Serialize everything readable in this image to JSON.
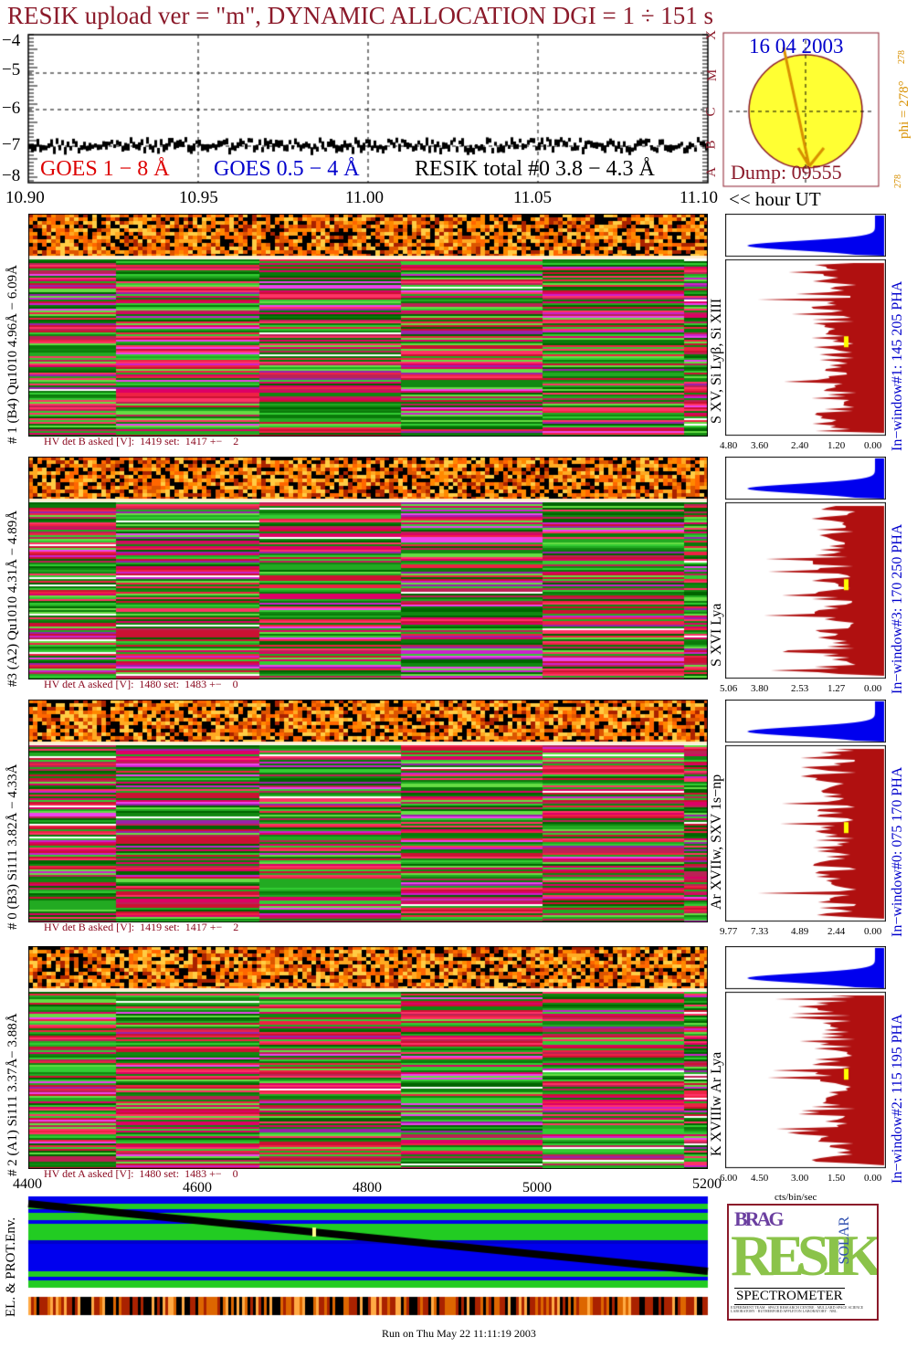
{
  "header": {
    "title": "RESIK upload ver = \"m\", DYNAMIC ALLOCATION  DGI =   1 ÷ 151 s"
  },
  "lightcurve": {
    "y_ticks": [
      "−4",
      "−5",
      "−6",
      "−7",
      "−8"
    ],
    "x_ticks": [
      "10.90",
      "10.95",
      "11.00",
      "11.05",
      "11.10"
    ],
    "x_unit_label": "<< hour UT",
    "legend": {
      "goes_long": "GOES 1 − 8 Å",
      "goes_short": "GOES 0.5 − 4 Å",
      "resik_total": "RESIK total #0  3.8 − 4.3 Å"
    },
    "flux_class_labels": [
      "X",
      "M",
      "C",
      "B",
      "A"
    ]
  },
  "sun_panel": {
    "date": "16 04 2003",
    "dump": "Dump: 09555",
    "phi_label": "phi = 278°",
    "phi_small": "278",
    "phi_bottom": "278"
  },
  "panels": [
    {
      "left_label": "# 1 (B4) Qu1010 4.96Å − 6.09Å",
      "lines_label": "S XV, Si Lyβ, Si XIII",
      "window_label": "In−window#1:  145 205 PHA",
      "hv_text": "HV det B asked [V]:  1419 set:  1417 +−    2",
      "axis_ticks": [
        "4.80",
        "3.60",
        "2.40",
        "1.20",
        "0.00"
      ]
    },
    {
      "left_label": "#3 (A2) Qu1010  4.31Å − 4.89Å",
      "lines_label": "S XVI Lya",
      "window_label": "In−window#3:  170 250 PHA",
      "hv_text": "HV det A asked [V]:  1480 set:  1483 +−    0",
      "axis_ticks": [
        "5.06",
        "3.80",
        "2.53",
        "1.27",
        "0.00"
      ]
    },
    {
      "left_label": "# 0 (B3) Si111  3.82Å − 4.33Å",
      "lines_label": "Ar XVIIw, SXV 1s−np",
      "window_label": "In−window#0:  075 170 PHA",
      "hv_text": "HV det B asked [V]:  1419 set:  1417 +−    2",
      "axis_ticks": [
        "9.77",
        "7.33",
        "4.89",
        "2.44",
        "0.00"
      ]
    },
    {
      "left_label": "# 2 (A1) Si111  3.37Å− 3.88Å",
      "lines_label": "K XVIIIw  Ar Lya",
      "window_label": "In−window#2:  115 195 PHA",
      "hv_text": "HV det A asked [V]:  1480 set:  1483 +−    0",
      "axis_ticks": [
        "6.00",
        "4.50",
        "3.00",
        "1.50",
        "0.00"
      ]
    }
  ],
  "env_panel": {
    "left_label": "EL. & PROT.Env.",
    "x_ticks": [
      "4400",
      "4600",
      "4800",
      "5000",
      "5200"
    ],
    "spectrum_unit": "cts/bin/sec"
  },
  "logo": {
    "letters_top": "BRAG",
    "letters_main": "RESIK",
    "letters_side": "SOLAR",
    "caption": "SPECTROMETER",
    "fine_print": "EXPERIMENT TEAM · SPACE RESEARCH CENTRE · MULLARD SPACE SCIENCE LABORATORY · RUTHERFORD APPLETON LABORATORY · NRL"
  },
  "footer": {
    "run_text": "Run on Thu May 22 11:11:19 2003"
  },
  "colors": {
    "title": "#8b1a2a",
    "goes_long": "#dd0000",
    "goes_short": "#0000cc",
    "date_blue": "#0000cc",
    "sun_yellow": "#ffff33",
    "orange": "#d89000",
    "pha_blue": "#0000ee",
    "spectrum_red": "#b01010"
  }
}
